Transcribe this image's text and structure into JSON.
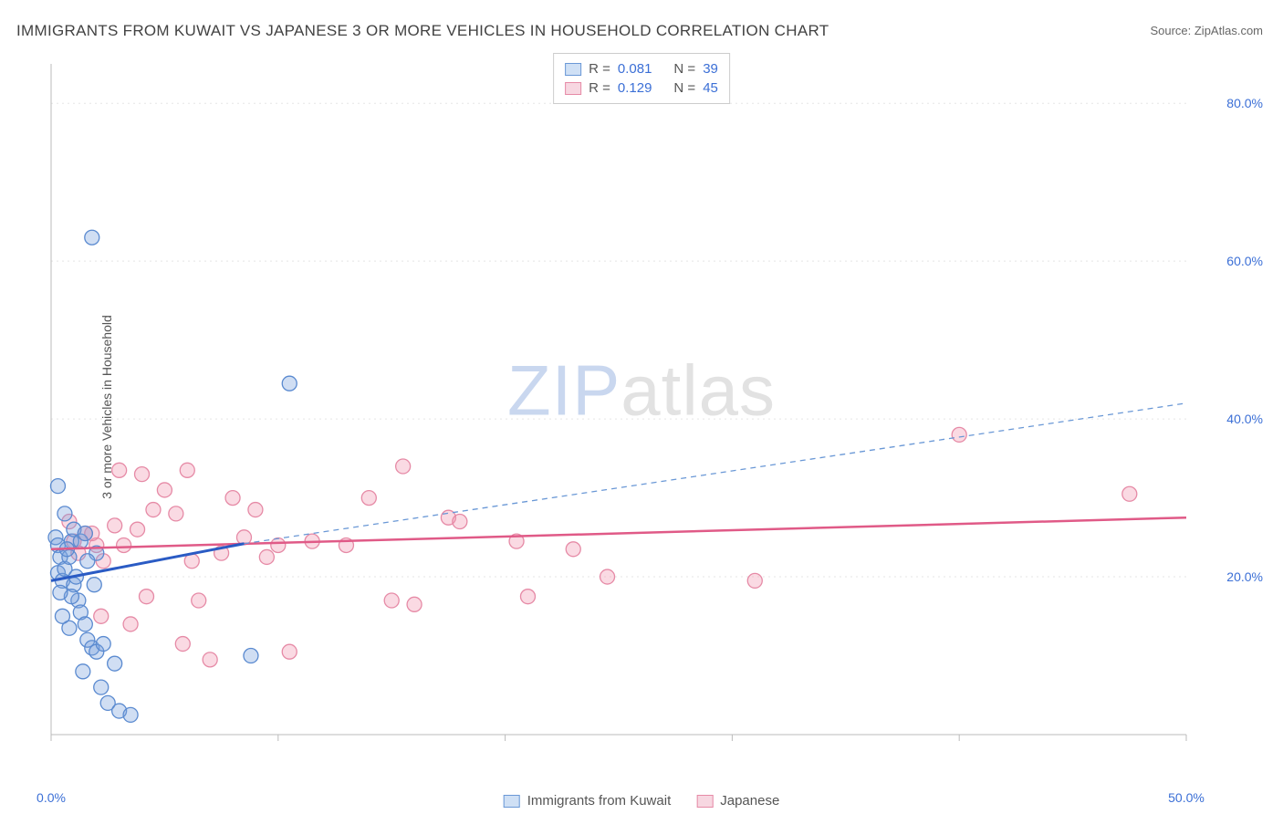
{
  "title": "IMMIGRANTS FROM KUWAIT VS JAPANESE 3 OR MORE VEHICLES IN HOUSEHOLD CORRELATION CHART",
  "source_label": "Source: ZipAtlas.com",
  "y_axis_label": "3 or more Vehicles in Household",
  "watermark": {
    "part1": "ZIP",
    "part2": "atlas"
  },
  "chart": {
    "type": "scatter",
    "background_color": "#ffffff",
    "grid_color": "#e5e5e5",
    "grid_dash": "2 4",
    "axis_label_color": "#3b6fd6",
    "xlim": [
      0,
      50
    ],
    "ylim": [
      0,
      85
    ],
    "x_ticks": [
      0,
      10,
      20,
      30,
      40,
      50
    ],
    "x_tick_labels": [
      "0.0%",
      "",
      "",
      "",
      "",
      "50.0%"
    ],
    "y_ticks": [
      20,
      40,
      60,
      80
    ],
    "y_tick_labels": [
      "20.0%",
      "40.0%",
      "60.0%",
      "80.0%"
    ],
    "marker_radius": 8,
    "marker_stroke_width": 1.3,
    "series": [
      {
        "name": "Immigrants from Kuwait",
        "legend_key": "series1_label",
        "color_fill": "rgba(120,160,220,0.35)",
        "color_stroke": "#5a8ad0",
        "swatch_fill": "#cfe0f5",
        "swatch_border": "#6a98d6",
        "R": "0.081",
        "N": "39",
        "trend": {
          "x1": 0,
          "y1": 19.5,
          "x2": 8.5,
          "y2": 24.2,
          "solid_color": "#2a5bc4",
          "solid_width": 3,
          "dash_to_x": 50,
          "dash_to_y": 42,
          "dash_color": "#6a98d6",
          "dash_width": 1.3,
          "dash_pattern": "6 5"
        },
        "points": [
          [
            0.3,
            31.5
          ],
          [
            0.2,
            25.0
          ],
          [
            0.3,
            24.0
          ],
          [
            0.4,
            22.5
          ],
          [
            0.3,
            20.5
          ],
          [
            0.5,
            19.5
          ],
          [
            0.6,
            21.0
          ],
          [
            0.8,
            22.5
          ],
          [
            0.9,
            24.5
          ],
          [
            1.0,
            19.0
          ],
          [
            1.2,
            17.0
          ],
          [
            1.3,
            15.5
          ],
          [
            1.5,
            14.0
          ],
          [
            1.6,
            12.0
          ],
          [
            1.8,
            11.0
          ],
          [
            2.0,
            10.5
          ],
          [
            1.4,
            8.0
          ],
          [
            2.2,
            6.0
          ],
          [
            2.5,
            4.0
          ],
          [
            3.0,
            3.0
          ],
          [
            3.5,
            2.5
          ],
          [
            2.8,
            9.0
          ],
          [
            1.0,
            26.0
          ],
          [
            0.6,
            28.0
          ],
          [
            1.8,
            63.0
          ],
          [
            10.5,
            44.5
          ],
          [
            8.8,
            10.0
          ],
          [
            0.8,
            13.5
          ],
          [
            1.3,
            24.5
          ],
          [
            2.0,
            23.0
          ],
          [
            0.5,
            15.0
          ],
          [
            0.9,
            17.5
          ],
          [
            1.1,
            20.0
          ],
          [
            1.6,
            22.0
          ],
          [
            0.7,
            23.5
          ],
          [
            0.4,
            18.0
          ],
          [
            1.9,
            19.0
          ],
          [
            1.5,
            25.5
          ],
          [
            2.3,
            11.5
          ]
        ]
      },
      {
        "name": "Japanese",
        "legend_key": "series2_label",
        "color_fill": "rgba(240,150,175,0.35)",
        "color_stroke": "#e68aa6",
        "swatch_fill": "#f7d7e1",
        "swatch_border": "#e68aa6",
        "R": "0.129",
        "N": "45",
        "trend": {
          "x1": 0,
          "y1": 23.5,
          "x2": 50,
          "y2": 27.5,
          "solid_color": "#e05a87",
          "solid_width": 2.5
        },
        "points": [
          [
            0.8,
            27.0
          ],
          [
            1.5,
            25.5
          ],
          [
            2.0,
            24.0
          ],
          [
            2.3,
            22.0
          ],
          [
            2.8,
            26.5
          ],
          [
            3.2,
            24.0
          ],
          [
            3.0,
            33.5
          ],
          [
            4.0,
            33.0
          ],
          [
            4.5,
            28.5
          ],
          [
            5.0,
            31.0
          ],
          [
            5.5,
            28.0
          ],
          [
            6.0,
            33.5
          ],
          [
            6.5,
            17.0
          ],
          [
            7.0,
            9.5
          ],
          [
            7.5,
            23.0
          ],
          [
            8.0,
            30.0
          ],
          [
            8.5,
            25.0
          ],
          [
            9.0,
            28.5
          ],
          [
            10.0,
            24.0
          ],
          [
            10.5,
            10.5
          ],
          [
            11.5,
            24.5
          ],
          [
            13.0,
            24.0
          ],
          [
            14.0,
            30.0
          ],
          [
            15.0,
            17.0
          ],
          [
            15.5,
            34.0
          ],
          [
            16.0,
            16.5
          ],
          [
            17.5,
            27.5
          ],
          [
            18.0,
            27.0
          ],
          [
            20.5,
            24.5
          ],
          [
            21.0,
            17.5
          ],
          [
            23.0,
            23.5
          ],
          [
            24.5,
            20.0
          ],
          [
            31.0,
            19.5
          ],
          [
            40.0,
            38.0
          ],
          [
            47.5,
            30.5
          ],
          [
            1.2,
            23.0
          ],
          [
            1.8,
            25.5
          ],
          [
            3.5,
            14.0
          ],
          [
            4.2,
            17.5
          ],
          [
            5.8,
            11.5
          ],
          [
            2.2,
            15.0
          ],
          [
            1.0,
            24.5
          ],
          [
            6.2,
            22.0
          ],
          [
            3.8,
            26.0
          ],
          [
            9.5,
            22.5
          ]
        ]
      }
    ]
  },
  "legend_top": {
    "r_label": "R =",
    "n_label": "N ="
  },
  "legend_bottom": {
    "series1_label": "Immigrants from Kuwait",
    "series2_label": "Japanese"
  }
}
